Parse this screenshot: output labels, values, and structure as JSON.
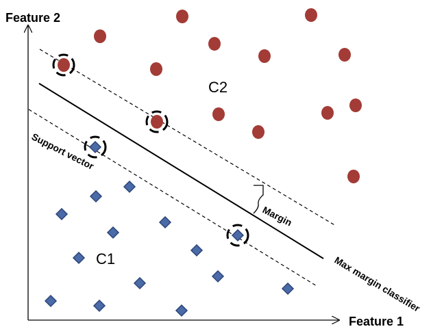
{
  "axes": {
    "x_label": "Feature 1",
    "y_label": "Feature 2"
  },
  "classes": {
    "c1": {
      "label": "C1",
      "color": "#4a6aa8",
      "marker": "diamond"
    },
    "c2": {
      "label": "C2",
      "color": "#a33b36",
      "marker": "circle"
    }
  },
  "annotations": {
    "support_vector": "Support vector",
    "margin": "Margin",
    "max_margin_classifier": "Max margin classifier"
  },
  "colors": {
    "line": "#000000",
    "support_ring": "#000000"
  }
}
